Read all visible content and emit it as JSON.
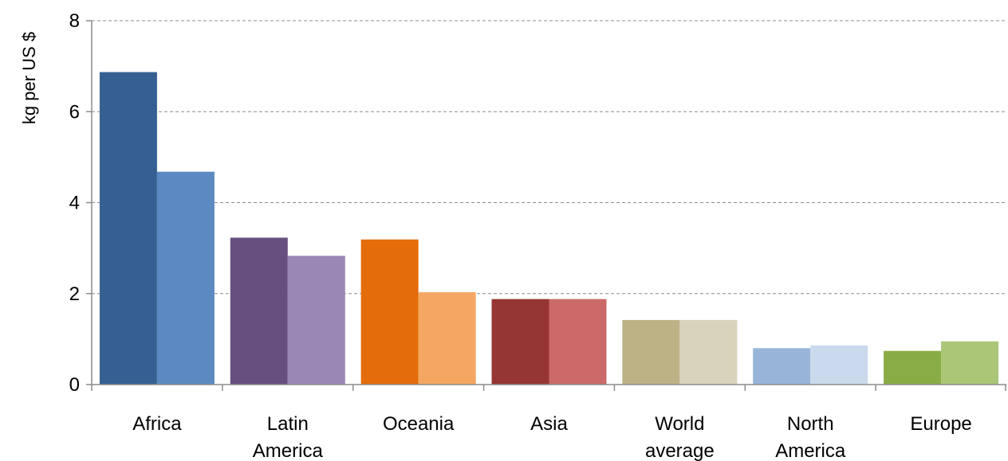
{
  "chart_data": {
    "type": "bar",
    "title": "",
    "xlabel": "",
    "ylabel": "kg per US $",
    "ylim": [
      0,
      8
    ],
    "yticks": [
      0,
      2,
      4,
      6,
      8
    ],
    "grid": true,
    "legend": "none",
    "categories": [
      [
        "Africa"
      ],
      [
        "Latin",
        "America"
      ],
      [
        "Oceania"
      ],
      [
        "Asia"
      ],
      [
        "World",
        "average"
      ],
      [
        "North",
        "America"
      ],
      [
        "Europe"
      ]
    ],
    "series": [
      {
        "values": [
          6.87,
          3.23,
          3.19,
          1.88,
          1.42,
          0.8,
          0.74
        ]
      },
      {
        "values": [
          4.68,
          2.83,
          2.03,
          1.88,
          1.42,
          0.86,
          0.95
        ]
      }
    ],
    "colors": [
      [
        "#366092",
        "#5b8ac2"
      ],
      [
        "#674f7f",
        "#9a87b5"
      ],
      [
        "#e46c0a",
        "#f5a660"
      ],
      [
        "#963634",
        "#cb6a68"
      ],
      [
        "#bcb286",
        "#d9d3bb"
      ],
      [
        "#97b4d9",
        "#cad9ec"
      ],
      [
        "#8aac47",
        "#abc677"
      ]
    ]
  }
}
